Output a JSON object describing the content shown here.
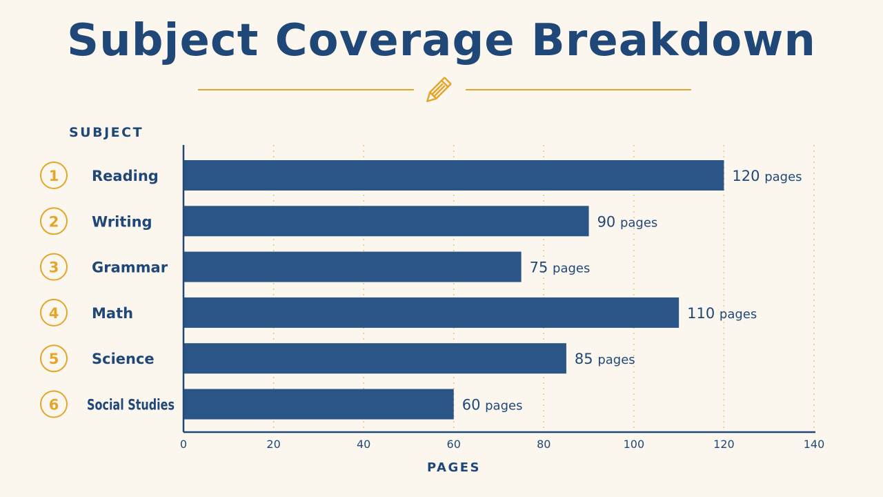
{
  "title": "Subject Coverage Breakdown",
  "colors": {
    "background": "#fbf7ee",
    "bar": "#2b5587",
    "text": "#1f4778",
    "accent": "#e3a52a"
  },
  "ornament_icon": "pencil-icon",
  "chart_data": {
    "type": "bar",
    "orientation": "horizontal",
    "title": "Subject Coverage Breakdown",
    "ylabel": "SUBJECT",
    "xlabel": "PAGES",
    "categories": [
      "Reading",
      "Writing",
      "Grammar",
      "Math",
      "Science",
      "Social Studies"
    ],
    "ranks": [
      "1",
      "2",
      "3",
      "4",
      "5",
      "6"
    ],
    "values": [
      120,
      90,
      75,
      110,
      85,
      60
    ],
    "value_labels": [
      "120",
      "90",
      "75",
      "110",
      "85",
      "60"
    ],
    "value_unit": "pages",
    "xlim": [
      0,
      140
    ],
    "xticks": [
      0,
      20,
      40,
      60,
      80,
      100,
      120,
      140
    ],
    "grid": "vertical dotted",
    "legend": "none"
  }
}
